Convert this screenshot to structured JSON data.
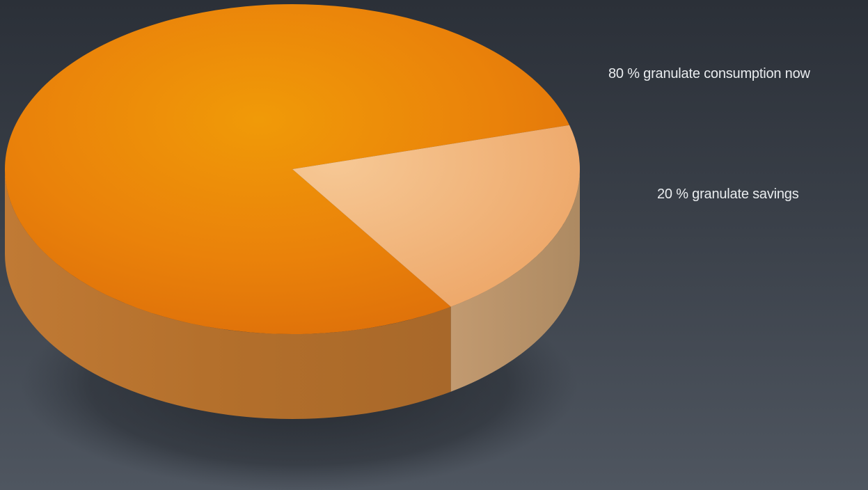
{
  "chart_data": {
    "type": "pie",
    "style": "3d",
    "categories": [
      "granulate consumption now",
      "granulate savings"
    ],
    "values": [
      80,
      20
    ],
    "unit": "%",
    "labels": [
      "80 % granulate consumption now",
      "20 % granulate savings"
    ],
    "colors": {
      "slice_0_top": "#ee8a0a",
      "slice_0_side": "#b8722e",
      "slice_1_top": "#f0b36e",
      "slice_1_side": "#b89268"
    },
    "legend": "right",
    "grid": false
  }
}
